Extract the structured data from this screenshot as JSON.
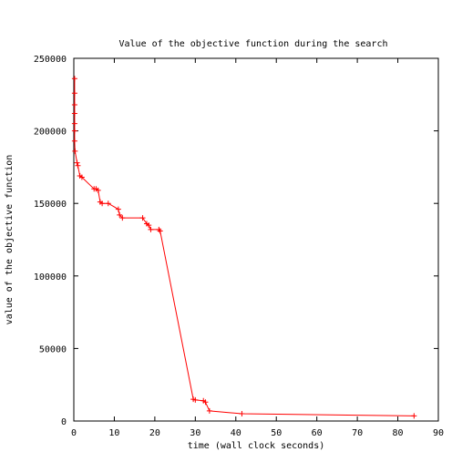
{
  "chart_data": {
    "type": "line",
    "title": "Value of the objective function during the search",
    "xlabel": "time (wall clock seconds)",
    "ylabel": "value of the objective function",
    "xlim": [
      0,
      90
    ],
    "ylim": [
      0,
      250000
    ],
    "xticks": [
      0,
      10,
      20,
      30,
      40,
      50,
      60,
      70,
      80,
      90
    ],
    "yticks": [
      0,
      50000,
      100000,
      150000,
      200000,
      250000
    ],
    "grid": false,
    "legend": "none",
    "series": [
      {
        "color": "#ff0000",
        "marker": "plus",
        "points": [
          [
            0.2,
            236000
          ],
          [
            0.2,
            226000
          ],
          [
            0.2,
            218000
          ],
          [
            0.2,
            212000
          ],
          [
            0.2,
            205000
          ],
          [
            0.2,
            200000
          ],
          [
            0.2,
            193000
          ],
          [
            0.3,
            186000
          ],
          [
            0.8,
            178000
          ],
          [
            1.0,
            176000
          ],
          [
            1.5,
            169000
          ],
          [
            2.0,
            168000
          ],
          [
            5.0,
            160000
          ],
          [
            5.5,
            160000
          ],
          [
            6.0,
            159000
          ],
          [
            6.5,
            151000
          ],
          [
            7.0,
            150000
          ],
          [
            8.5,
            150000
          ],
          [
            11.0,
            146000
          ],
          [
            11.3,
            142000
          ],
          [
            12.0,
            140000
          ],
          [
            17.0,
            140000
          ],
          [
            18.0,
            136000
          ],
          [
            18.5,
            135000
          ],
          [
            19.0,
            132000
          ],
          [
            21.0,
            132000
          ],
          [
            21.3,
            131000
          ],
          [
            29.5,
            15000
          ],
          [
            30.0,
            14500
          ],
          [
            32.0,
            14000
          ],
          [
            32.5,
            13000
          ],
          [
            33.5,
            7000
          ],
          [
            41.5,
            5000
          ],
          [
            84.0,
            3500
          ]
        ]
      }
    ]
  }
}
